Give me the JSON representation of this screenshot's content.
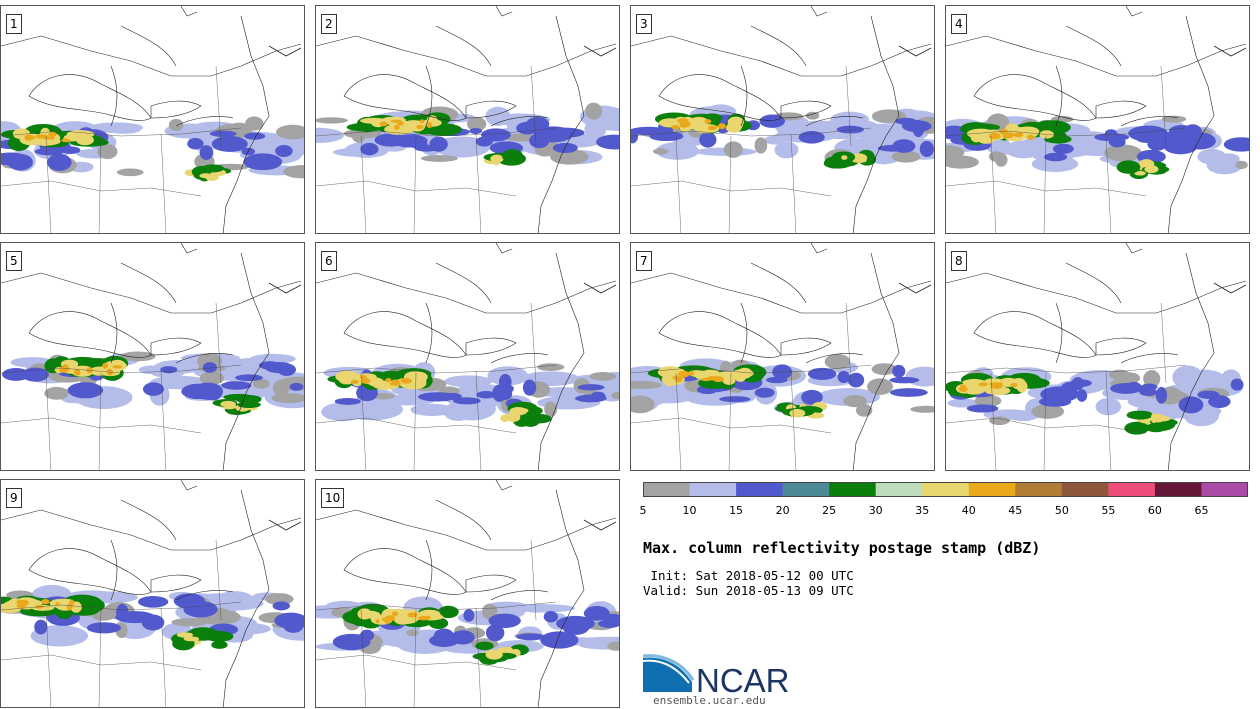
{
  "panels": [
    {
      "label": "1"
    },
    {
      "label": "2"
    },
    {
      "label": "3"
    },
    {
      "label": "4"
    },
    {
      "label": "5"
    },
    {
      "label": "6"
    },
    {
      "label": "7"
    },
    {
      "label": "8"
    },
    {
      "label": "9"
    },
    {
      "label": "10"
    }
  ],
  "colorbar": {
    "ticks": [
      "5",
      "10",
      "15",
      "20",
      "25",
      "30",
      "35",
      "40",
      "45",
      "50",
      "55",
      "60",
      "65"
    ],
    "colors": [
      "#a3a3a3",
      "#b4bde9",
      "#5159cd",
      "#4c8b96",
      "#0b7f0b",
      "#bcdcbb",
      "#ead66f",
      "#eaa81c",
      "#b17c34",
      "#8d583c",
      "#ec4d7a",
      "#651737",
      "#aa4ba6"
    ]
  },
  "title": "Max. column reflectivity postage stamp (dBZ)",
  "init_line": " Init: Sat 2018-05-12 00 UTC",
  "valid_line": "Valid: Sun 2018-05-13 09 UTC",
  "logo": {
    "text": "NCAR",
    "url": "ensemble.ucar.edu"
  }
}
